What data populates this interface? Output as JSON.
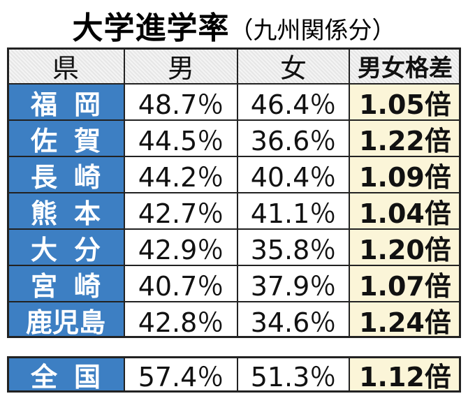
{
  "title": "大学進学率",
  "subtitle": "（九州関係分）",
  "table": {
    "header": [
      "県",
      "男",
      "女",
      "男女格差"
    ],
    "rows": [
      [
        "福岡",
        "48.7％",
        "46.4％",
        "1.05倍"
      ],
      [
        "佐賀",
        "44.5％",
        "36.6％",
        "1.22倍"
      ],
      [
        "長崎",
        "44.2％",
        "40.4％",
        "1.09倍"
      ],
      [
        "熊本",
        "42.7％",
        "41.1％",
        "1.04倍"
      ],
      [
        "大分",
        "42.9％",
        "35.8％",
        "1.20倍"
      ],
      [
        "宮崎",
        "40.7％",
        "37.9％",
        "1.07倍"
      ],
      [
        "鹿児島",
        "42.8％",
        "34.6％",
        "1.24倍"
      ]
    ],
    "total": [
      "全国",
      "57.4％",
      "51.3％",
      "1.12倍"
    ]
  }
}
